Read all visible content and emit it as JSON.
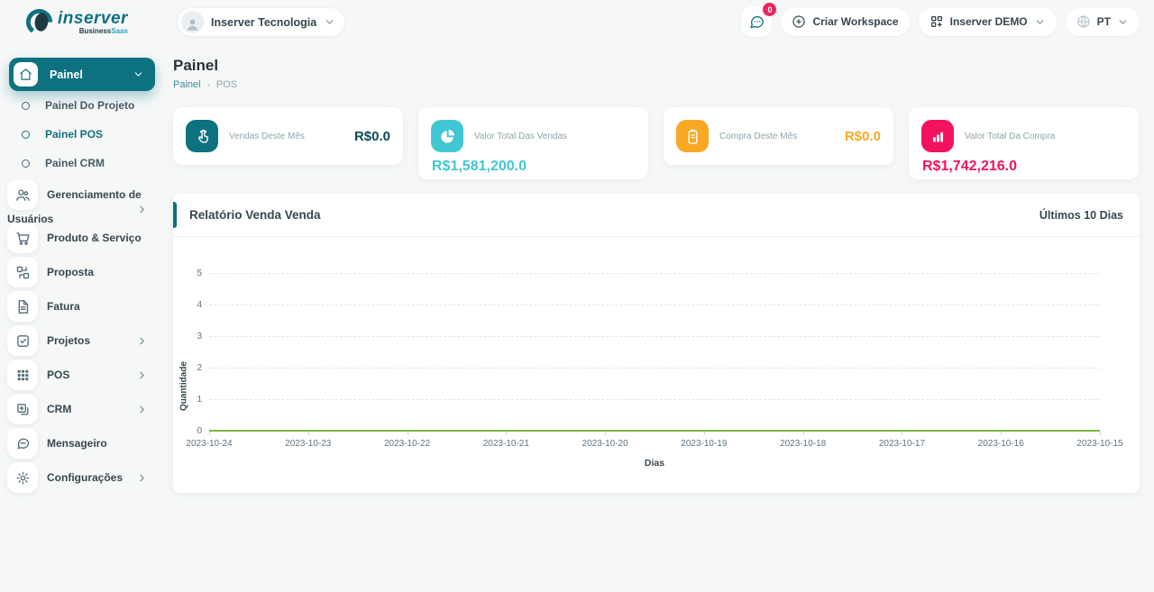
{
  "brand": {
    "name": "inserver",
    "tagline_dark": "Business",
    "tagline_accent": "Saas"
  },
  "header": {
    "workspace_selector": "Inserver Tecnologia",
    "notification_badge": "0",
    "create_workspace": "Criar Workspace",
    "tenant_selector": "Inserver DEMO",
    "language": "PT"
  },
  "sidebar": {
    "items": [
      {
        "label": "Painel",
        "icon": "home",
        "type": "parent-active",
        "chevron": "down"
      },
      {
        "label": "Painel Do Projeto",
        "icon": "dot",
        "type": "sub",
        "active": false
      },
      {
        "label": "Painel POS",
        "icon": "dot",
        "type": "sub",
        "active": true
      },
      {
        "label": "Painel CRM",
        "icon": "dot",
        "type": "sub",
        "active": false
      },
      {
        "label": "Gerenciamento de Usuários",
        "icon": "users",
        "chevron": "right",
        "two_line": true
      },
      {
        "label": "Produto & Serviço",
        "icon": "cart"
      },
      {
        "label": "Proposta",
        "icon": "swap"
      },
      {
        "label": "Fatura",
        "icon": "file"
      },
      {
        "label": "Projetos",
        "icon": "check-square",
        "chevron": "right"
      },
      {
        "label": "POS",
        "icon": "grid",
        "chevron": "right"
      },
      {
        "label": "CRM",
        "icon": "window-plus",
        "chevron": "right"
      },
      {
        "label": "Mensageiro",
        "icon": "chat"
      },
      {
        "label": "Configurações",
        "icon": "gear",
        "chevron": "right"
      }
    ]
  },
  "page": {
    "title": "Painel",
    "breadcrumb": [
      "Painel",
      "POS"
    ]
  },
  "stat_cards": [
    {
      "label": "Vendas Deste Mês",
      "value": "R$0.0",
      "icon": "tap",
      "chip_color": "#0e7180",
      "value_color": "#0f4a56",
      "layout": "inline"
    },
    {
      "label": "Valor Total Das Vendas",
      "value": "R$1,581,200.0",
      "icon": "pie",
      "chip_color": "#41c7d4",
      "value_color": "#41c7d4",
      "layout": "stacked"
    },
    {
      "label": "Compra Deste Mês",
      "value": "R$0.0",
      "icon": "clipboard",
      "chip_color": "#f9a826",
      "value_color": "#f9a826",
      "layout": "inline"
    },
    {
      "label": "Valor Total Da Compra",
      "value": "R$1,742,216.0",
      "icon": "bars",
      "chip_color": "#f31260",
      "value_color": "#f31260",
      "layout": "stacked"
    }
  ],
  "chart_card": {
    "title": "Relatório Venda Venda",
    "period": "Últimos 10 Dias"
  },
  "chart_data": {
    "type": "line",
    "categories": [
      "2023-10-24",
      "2023-10-23",
      "2023-10-22",
      "2023-10-21",
      "2023-10-20",
      "2023-10-19",
      "2023-10-18",
      "2023-10-17",
      "2023-10-16",
      "2023-10-15"
    ],
    "values": [
      0,
      0,
      0,
      0,
      0,
      0,
      0,
      0,
      0,
      0
    ],
    "title": "Relatório Venda Venda",
    "xlabel": "Dias",
    "ylabel": "Quantidade",
    "ylim": [
      0,
      5
    ],
    "y_ticks": [
      0,
      1,
      2,
      3,
      4,
      5
    ],
    "line_color": "#7cb93e",
    "grid": true,
    "legend": false
  }
}
